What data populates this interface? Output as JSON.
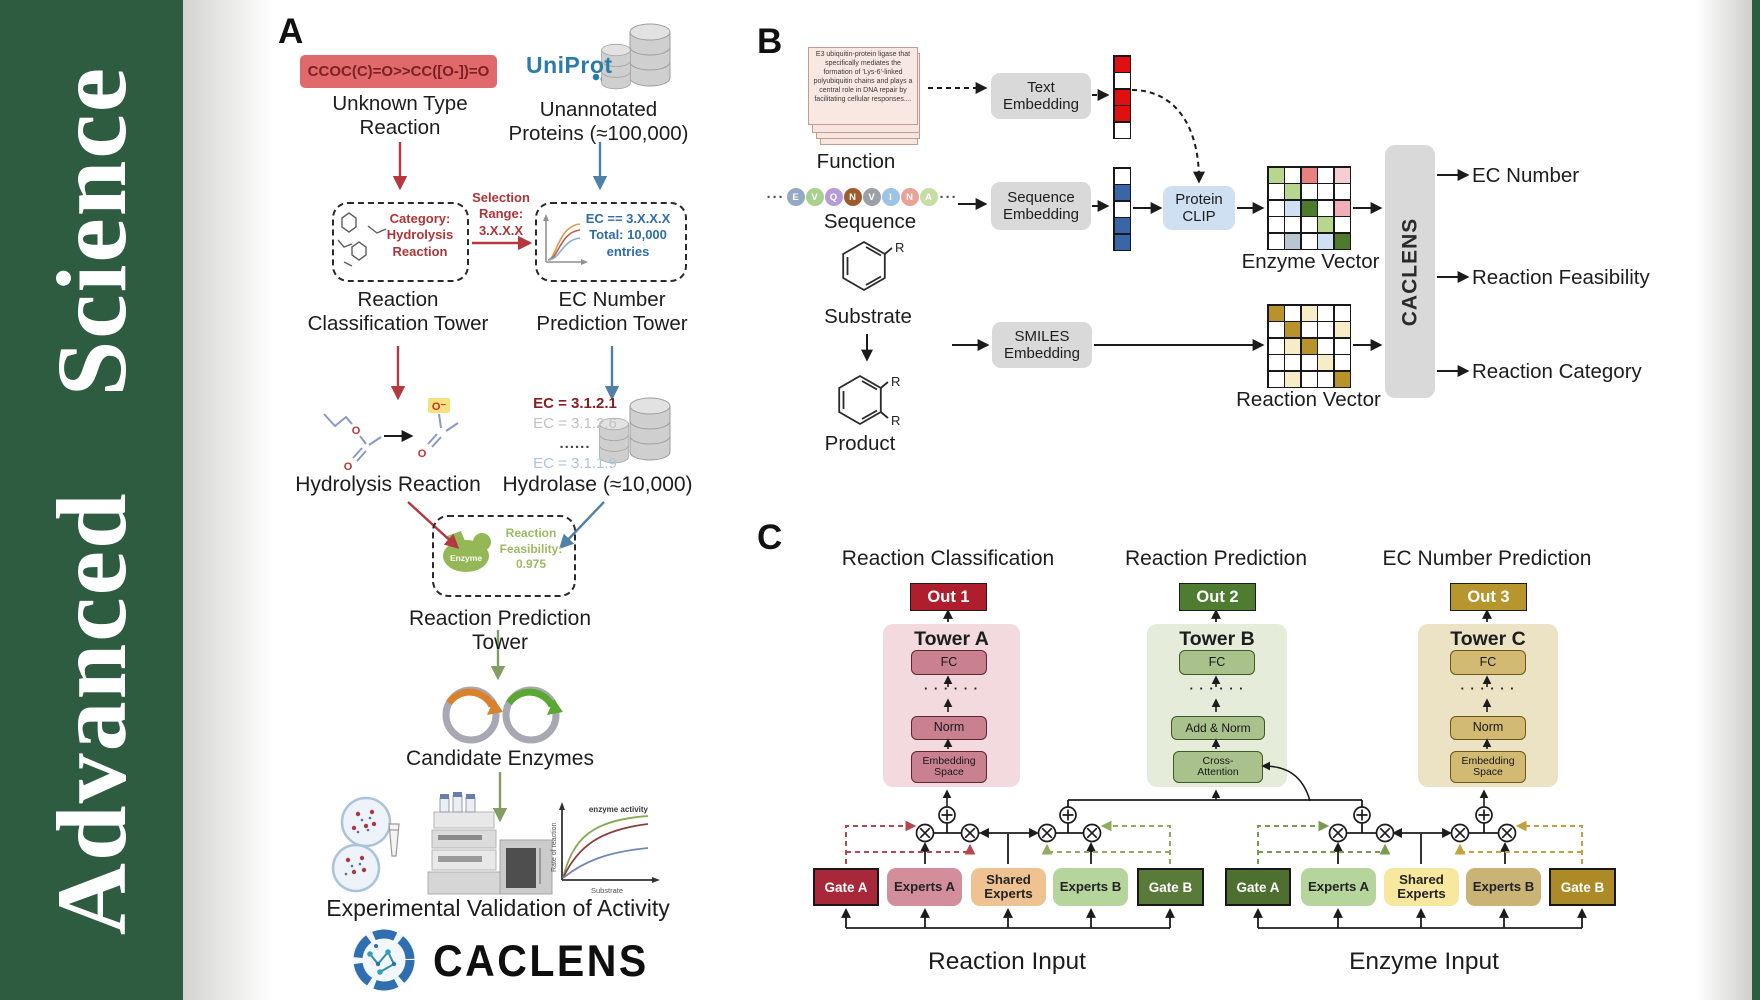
{
  "journal": {
    "word1": "Advanced",
    "word2": "Science",
    "bg_color": "#2d5c41"
  },
  "panelA": {
    "label": "A",
    "smiles": "CCOC(C)=O>>CC([O-])=O",
    "unknown_reaction": "Unknown Type\nReaction",
    "uniprot": "UniProt",
    "unannotated": "Unannotated\nProteins (≈100,000)",
    "category": "Category:\nHydrolysis\nReaction",
    "selection": "Selection\nRange:\n3.X.X.X",
    "ec_filter": "EC == 3.X.X.X\nTotal: 10,000\nentries",
    "classification_tower": "Reaction\nClassification Tower",
    "ec_tower": "EC Number\nPrediction Tower",
    "ec_list": [
      "EC = 3.1.2.1",
      "EC = 3.1.2.6",
      "......",
      "EC = 3.1.1.9"
    ],
    "atom_o": "O",
    "atom_o_minus": "O⁻",
    "hydrolysis": "Hydrolysis Reaction",
    "hydrolase": "Hydrolase (≈10,000)",
    "enzyme": "Enzyme",
    "feasibility": "Reaction\nFeasibility:\n0.975",
    "prediction_tower": "Reaction Prediction Tower",
    "candidates": "Candidate Enzymes",
    "validation": "Experimental Validation of Activity",
    "brand": "CACLENS",
    "activity_chart": {
      "series_label": "enzyme activity",
      "ylabel": "Rate of reaction",
      "xlabel": "Substrate"
    }
  },
  "panelB": {
    "label": "B",
    "function_card": "E3 ubiquitin-protein ligase that specifically mediates the formation of 'Lys-6'-linked polyubiquitin chains and plays a central role in DNA repair by facilitating cellular responses....",
    "function": "Function",
    "ellipsis": "···",
    "sequence_tokens": [
      {
        "ch": "E",
        "color": "#93a9c4"
      },
      {
        "ch": "V",
        "color": "#a9d18e"
      },
      {
        "ch": "Q",
        "color": "#b79bd6"
      },
      {
        "ch": "N",
        "color": "#a05a2c"
      },
      {
        "ch": "V",
        "color": "#9aa0a6"
      },
      {
        "ch": "I",
        "color": "#9dc3e6"
      },
      {
        "ch": "N",
        "color": "#e8a396"
      },
      {
        "ch": "A",
        "color": "#c6dda4"
      }
    ],
    "sequence": "Sequence",
    "substrate": "Substrate",
    "product": "Product",
    "r_group": "R",
    "text_embedding": "Text\nEmbedding",
    "sequence_embedding": "Sequence\nEmbedding",
    "smiles_embedding": "SMILES\nEmbedding",
    "protein_clip": "Protein\nCLIP",
    "text_vector": [
      "#e01010",
      "#ffffff",
      "#e01010",
      "#e01010",
      "#ffffff"
    ],
    "sequence_vector": [
      "#ffffff",
      "#3a66a8",
      "#ffffff",
      "#3a66a8",
      "#3a66a8"
    ],
    "enzyme_grid": [
      [
        "#b7d78e",
        "#ffffff",
        "#e88080",
        "#ffffff",
        "#f6cdd3"
      ],
      [
        "#ffffff",
        "#b7d78e",
        "#ffffff",
        "#ffffff",
        "#ffffff"
      ],
      [
        "#ffffff",
        "#cfe0f3",
        "#4e7a2e",
        "#ffffff",
        "#f0aeb6"
      ],
      [
        "#ffffff",
        "#ffffff",
        "#ffffff",
        "#b7d78e",
        "#ffffff"
      ],
      [
        "#ffffff",
        "#b9c6d2",
        "#ffffff",
        "#cfe0f3",
        "#4e7a2e"
      ]
    ],
    "reaction_grid": [
      [
        "#b8922a",
        "#ffffff",
        "#f7ecc8",
        "#ffffff",
        "#ffffff"
      ],
      [
        "#ffffff",
        "#b8922a",
        "#ffffff",
        "#ffffff",
        "#f7ecc8"
      ],
      [
        "#ffffff",
        "#f7ecc8",
        "#b8922a",
        "#ffffff",
        "#ffffff"
      ],
      [
        "#ffffff",
        "#ffffff",
        "#ffffff",
        "#f7ecc8",
        "#ffffff"
      ],
      [
        "#ffffff",
        "#f7ecc8",
        "#ffffff",
        "#ffffff",
        "#b8922a"
      ]
    ],
    "enzyme_vector": "Enzyme Vector",
    "reaction_vector": "Reaction Vector",
    "caclens": "CACLENS",
    "outputs": [
      "EC Number",
      "Reaction Feasibility",
      "Reaction Category"
    ]
  },
  "panelC": {
    "label": "C",
    "headings": [
      "Reaction Classification",
      "Reaction Prediction",
      "EC Number Prediction"
    ],
    "outs": [
      {
        "label": "Out 1",
        "color": "#b01e2e"
      },
      {
        "label": "Out 2",
        "color": "#4e7c31"
      },
      {
        "label": "Out 3",
        "color": "#b8962e"
      }
    ],
    "towers": [
      {
        "name": "Tower A",
        "fc": "FC",
        "dots": "· · · · · ·",
        "mid": "Norm",
        "base": "Embedding\nSpace"
      },
      {
        "name": "Tower B",
        "fc": "FC",
        "dots": "· · · · · ·",
        "mid": "Add & Norm",
        "base": "Cross-\nAttention"
      },
      {
        "name": "Tower C",
        "fc": "FC",
        "dots": "· · · · · ·",
        "mid": "Norm",
        "base": "Embedding\nSpace"
      }
    ],
    "left_group": {
      "gate_a": "Gate A",
      "experts_a": "Experts A",
      "shared": "Shared\nExperts",
      "experts_b": "Experts B",
      "gate_b": "Gate B",
      "input": "Reaction Input"
    },
    "right_group": {
      "gate_a": "Gate A",
      "experts_a": "Experts A",
      "shared": "Shared\nExperts",
      "experts_b": "Experts B",
      "gate_b": "Gate B",
      "input": "Enzyme Input"
    }
  }
}
